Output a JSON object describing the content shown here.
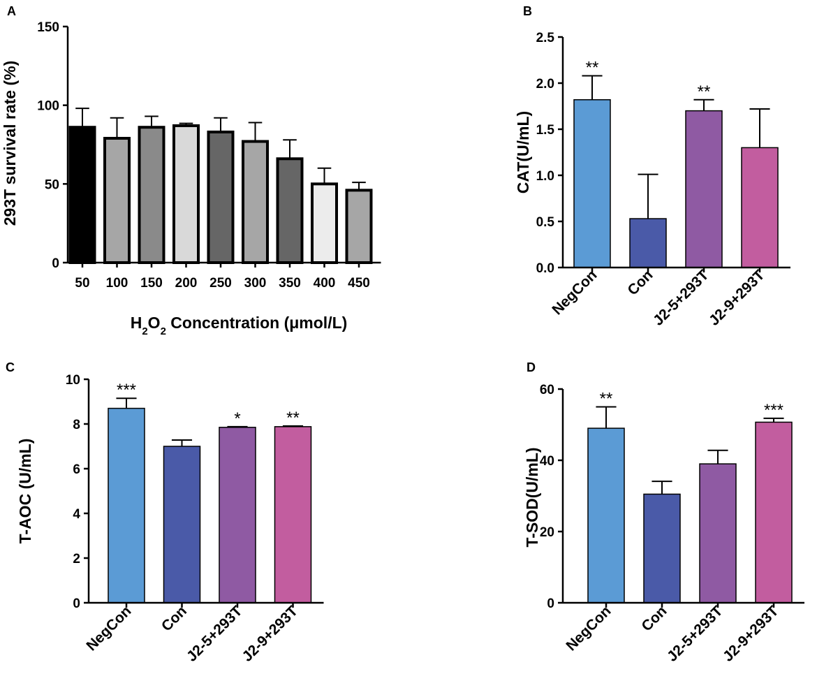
{
  "chart_data": [
    {
      "panel": "A",
      "type": "bar",
      "xlabel_main": "H",
      "xlabel_sub1": "2",
      "xlabel_mid": "O",
      "xlabel_sub2": "2",
      "xlabel_rest": " Concentration (μmol/L)",
      "ylabel": "293T survival rate (%)",
      "ylim": [
        0,
        150
      ],
      "yticks": [
        "0",
        "50",
        "100",
        "150"
      ],
      "categories": [
        "50",
        "100",
        "150",
        "200",
        "250",
        "300",
        "350",
        "400",
        "450"
      ],
      "values": [
        86,
        79,
        86,
        87,
        83,
        77,
        66,
        50,
        46
      ],
      "errors": [
        12,
        13,
        7,
        1.5,
        9,
        12,
        12,
        10,
        5
      ],
      "colors": [
        "#000000",
        "#a6a6a6",
        "#8a8a8a",
        "#d9d9d9",
        "#666666",
        "#a6a6a6",
        "#666666",
        "#ececec",
        "#a6a6a6"
      ],
      "significance": [
        "",
        "",
        "",
        "",
        "",
        "",
        "",
        "",
        ""
      ]
    },
    {
      "panel": "B",
      "type": "bar",
      "ylabel": "CAT(U/mL)",
      "ylim": [
        0,
        2.5
      ],
      "yticks": [
        "0.0",
        "0.5",
        "1.0",
        "1.5",
        "2.0",
        "2.5"
      ],
      "categories": [
        "NegCon",
        "Con",
        "J2-5+293T",
        "J2-9+293T"
      ],
      "values": [
        1.82,
        0.53,
        1.7,
        1.3
      ],
      "errors": [
        0.26,
        0.48,
        0.12,
        0.42
      ],
      "colors": [
        "#5b9bd5",
        "#4a5aa8",
        "#8f5aa3",
        "#c25d9f"
      ],
      "significance": [
        "**",
        "",
        "**",
        ""
      ]
    },
    {
      "panel": "C",
      "type": "bar",
      "ylabel": "T-AOC (U/mL)",
      "ylim": [
        0,
        10
      ],
      "yticks": [
        "0",
        "2",
        "4",
        "6",
        "8",
        "10"
      ],
      "categories": [
        "NegCon",
        "Con",
        "J2-5+293T",
        "J2-9+293T"
      ],
      "values": [
        8.7,
        7.0,
        7.85,
        7.88
      ],
      "errors": [
        0.45,
        0.28,
        0.03,
        0.03
      ],
      "colors": [
        "#5b9bd5",
        "#4a5aa8",
        "#8f5aa3",
        "#c25d9f"
      ],
      "significance": [
        "***",
        "",
        "*",
        "**"
      ]
    },
    {
      "panel": "D",
      "type": "bar",
      "ylabel": "T-SOD(U/mL)",
      "ylim": [
        0,
        60
      ],
      "yticks": [
        "0",
        "20",
        "40",
        "60"
      ],
      "categories": [
        "NegCon",
        "Con",
        "J2-5+293T",
        "J2-9+293T"
      ],
      "values": [
        49,
        30.5,
        39,
        50.7
      ],
      "errors": [
        6,
        3.6,
        3.8,
        1.1
      ],
      "colors": [
        "#5b9bd5",
        "#4a5aa8",
        "#8f5aa3",
        "#c25d9f"
      ],
      "significance": [
        "**",
        "",
        "",
        "***"
      ]
    }
  ]
}
